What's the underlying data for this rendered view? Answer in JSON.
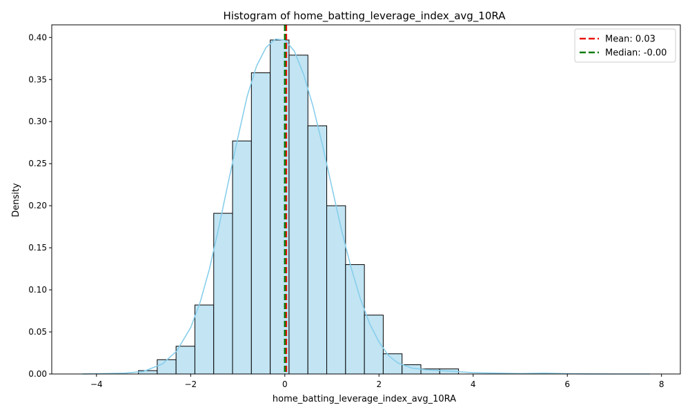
{
  "chart_data": {
    "type": "bar",
    "title": "Histogram of home_batting_leverage_index_avg_10RA",
    "xlabel": "home_batting_leverage_index_avg_10RA",
    "ylabel": "Density",
    "xlim": [
      -4.95,
      8.4
    ],
    "ylim": [
      0,
      0.415
    ],
    "x_ticks": [
      -4,
      -2,
      0,
      2,
      4,
      6,
      8
    ],
    "x_tick_labels": [
      "−4",
      "−2",
      "0",
      "2",
      "4",
      "6",
      "8"
    ],
    "y_ticks": [
      0,
      0.05,
      0.1,
      0.15,
      0.2,
      0.25,
      0.3,
      0.35,
      0.4
    ],
    "y_tick_labels": [
      "0.00",
      "0.05",
      "0.10",
      "0.15",
      "0.20",
      "0.25",
      "0.30",
      "0.35",
      "0.40"
    ],
    "grid": false,
    "legend_position": "top-right",
    "bins": [
      {
        "x0": -4.31,
        "x1": -3.91,
        "density": 0.0
      },
      {
        "x0": -3.91,
        "x1": -3.51,
        "density": 0.0
      },
      {
        "x0": -3.51,
        "x1": -3.11,
        "density": 0.0
      },
      {
        "x0": -3.11,
        "x1": -2.71,
        "density": 0.004
      },
      {
        "x0": -2.71,
        "x1": -2.31,
        "density": 0.017
      },
      {
        "x0": -2.31,
        "x1": -1.91,
        "density": 0.033
      },
      {
        "x0": -1.91,
        "x1": -1.51,
        "density": 0.082
      },
      {
        "x0": -1.51,
        "x1": -1.11,
        "density": 0.191
      },
      {
        "x0": -1.11,
        "x1": -0.71,
        "density": 0.277
      },
      {
        "x0": -0.71,
        "x1": -0.31,
        "density": 0.358
      },
      {
        "x0": -0.31,
        "x1": 0.09,
        "density": 0.397
      },
      {
        "x0": 0.09,
        "x1": 0.49,
        "density": 0.379
      },
      {
        "x0": 0.49,
        "x1": 0.89,
        "density": 0.295
      },
      {
        "x0": 0.89,
        "x1": 1.29,
        "density": 0.2
      },
      {
        "x0": 1.29,
        "x1": 1.69,
        "density": 0.13
      },
      {
        "x0": 1.69,
        "x1": 2.09,
        "density": 0.07
      },
      {
        "x0": 2.09,
        "x1": 2.49,
        "density": 0.024
      },
      {
        "x0": 2.49,
        "x1": 2.89,
        "density": 0.011
      },
      {
        "x0": 2.89,
        "x1": 3.29,
        "density": 0.006
      },
      {
        "x0": 3.29,
        "x1": 3.69,
        "density": 0.006
      },
      {
        "x0": 3.69,
        "x1": 4.09,
        "density": 0.0
      },
      {
        "x0": 4.09,
        "x1": 4.49,
        "density": 0.0
      },
      {
        "x0": 4.49,
        "x1": 4.89,
        "density": 0.0
      },
      {
        "x0": 4.89,
        "x1": 5.29,
        "density": 0.0
      },
      {
        "x0": 5.29,
        "x1": 5.69,
        "density": 0.0
      },
      {
        "x0": 5.69,
        "x1": 6.09,
        "density": 0.0
      },
      {
        "x0": 6.09,
        "x1": 6.49,
        "density": 0.0
      },
      {
        "x0": 6.49,
        "x1": 6.89,
        "density": 0.0
      },
      {
        "x0": 6.89,
        "x1": 7.29,
        "density": 0.0
      },
      {
        "x0": 7.29,
        "x1": 7.69,
        "density": 0.0
      }
    ],
    "kde": {
      "x": [
        -4.3,
        -3.8,
        -3.4,
        -3.0,
        -2.6,
        -2.3,
        -2.0,
        -1.8,
        -1.6,
        -1.4,
        -1.2,
        -1.0,
        -0.8,
        -0.6,
        -0.4,
        -0.2,
        0.0,
        0.2,
        0.4,
        0.6,
        0.8,
        1.0,
        1.2,
        1.4,
        1.6,
        1.8,
        2.0,
        2.2,
        2.4,
        2.7,
        3.0,
        3.3,
        3.6,
        4.0,
        4.5,
        5.0,
        5.5,
        6.0,
        6.5,
        7.0,
        7.5,
        7.75
      ],
      "y": [
        0.0,
        0.0005,
        0.001,
        0.003,
        0.012,
        0.027,
        0.055,
        0.085,
        0.125,
        0.175,
        0.228,
        0.28,
        0.33,
        0.366,
        0.388,
        0.398,
        0.397,
        0.384,
        0.356,
        0.318,
        0.272,
        0.222,
        0.172,
        0.128,
        0.09,
        0.06,
        0.038,
        0.022,
        0.013,
        0.007,
        0.005,
        0.004,
        0.003,
        0.0015,
        0.001,
        0.0005,
        0.001,
        0.0003,
        0.0001,
        0.0,
        0.0,
        0.0
      ]
    },
    "reference_lines": [
      {
        "name": "Mean: 0.03",
        "x": 0.03,
        "color": "#e8130b"
      },
      {
        "name": "Median: -0.00",
        "x": 0.0,
        "color": "#087a08"
      }
    ],
    "colors": {
      "bar_fill": "#c2e4f3",
      "bar_edge": "#000000",
      "kde_line": "#87ceeb"
    }
  }
}
